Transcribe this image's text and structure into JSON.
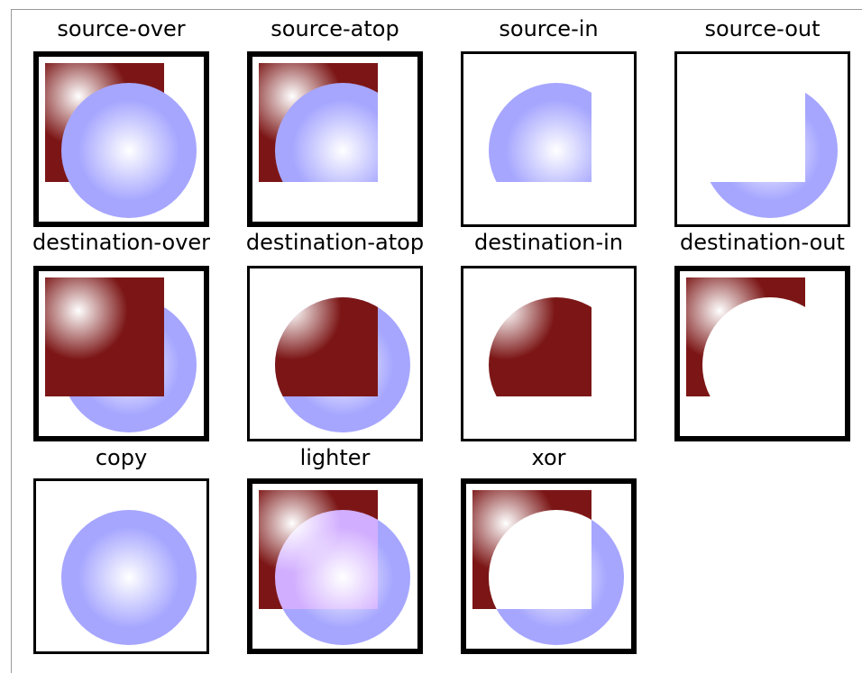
{
  "panels": [
    {
      "label": "source-over"
    },
    {
      "label": "source-atop"
    },
    {
      "label": "source-in"
    },
    {
      "label": "source-out"
    },
    {
      "label": "destination-over"
    },
    {
      "label": "destination-atop"
    },
    {
      "label": "destination-in"
    },
    {
      "label": "destination-out"
    },
    {
      "label": "copy"
    },
    {
      "label": "lighter"
    },
    {
      "label": "xor"
    }
  ]
}
